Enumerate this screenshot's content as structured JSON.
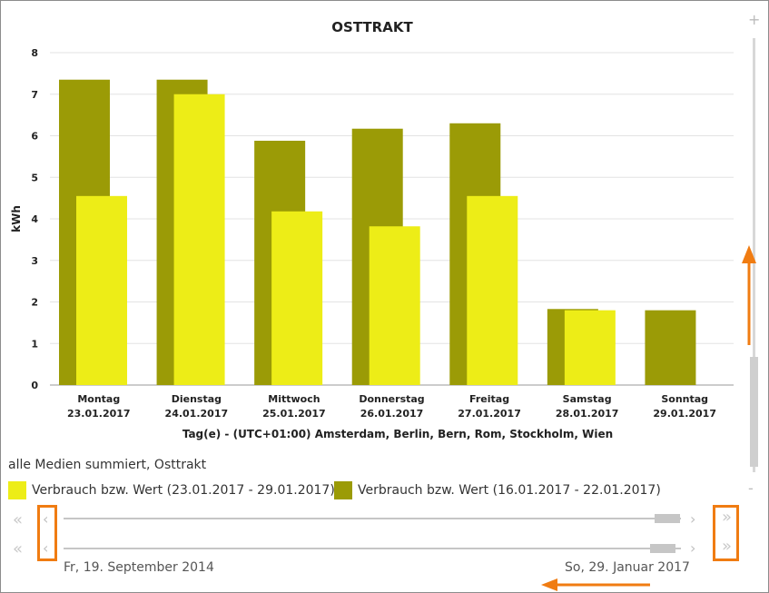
{
  "chart_data": {
    "type": "bar",
    "title": "OSTTRAKT",
    "ylabel": "kWh",
    "xlabel": "Tag(e) - (UTC+01:00) Amsterdam, Berlin, Bern, Rom, Stockholm, Wien",
    "ylim": [
      0,
      8
    ],
    "yticks": [
      "0",
      "1",
      "2",
      "3",
      "4",
      "5",
      "6",
      "7",
      "8"
    ],
    "categories": [
      {
        "day": "Montag",
        "date": "23.01.2017"
      },
      {
        "day": "Dienstag",
        "date": "24.01.2017"
      },
      {
        "day": "Mittwoch",
        "date": "25.01.2017"
      },
      {
        "day": "Donnerstag",
        "date": "26.01.2017"
      },
      {
        "day": "Freitag",
        "date": "27.01.2017"
      },
      {
        "day": "Samstag",
        "date": "28.01.2017"
      },
      {
        "day": "Sonntag",
        "date": "29.01.2017"
      }
    ],
    "series": [
      {
        "name": "Verbrauch bzw. Wert (16.01.2017 - 22.01.2017)",
        "color": "#9b9b06",
        "values": [
          7.35,
          7.35,
          5.88,
          6.17,
          6.3,
          1.83,
          1.8
        ]
      },
      {
        "name": "Verbrauch bzw. Wert (23.01.2017 - 29.01.2017)",
        "color": "#eded17",
        "values": [
          4.55,
          7.0,
          4.18,
          3.82,
          4.55,
          1.8,
          null
        ]
      }
    ],
    "grid": true
  },
  "legend": {
    "title": "alle Medien summiert, Osttrakt",
    "items": [
      {
        "label": "Verbrauch bzw. Wert (23.01.2017 - 29.01.2017)",
        "color": "#eded17"
      },
      {
        "label": "Verbrauch bzw. Wert (16.01.2017 - 22.01.2017)",
        "color": "#9b9b06"
      }
    ]
  },
  "navigator": {
    "start_date": "Fr, 19. September 2014",
    "end_date": "So, 29. Januar 2017",
    "first_icon": "double-chevron-left-icon",
    "prev_icon": "chevron-left-icon",
    "next_icon": "chevron-right-icon",
    "last_icon": "double-chevron-right-icon"
  },
  "zoom": {
    "plus": "+",
    "minus": "-"
  },
  "annotation_color": "#f07c12"
}
